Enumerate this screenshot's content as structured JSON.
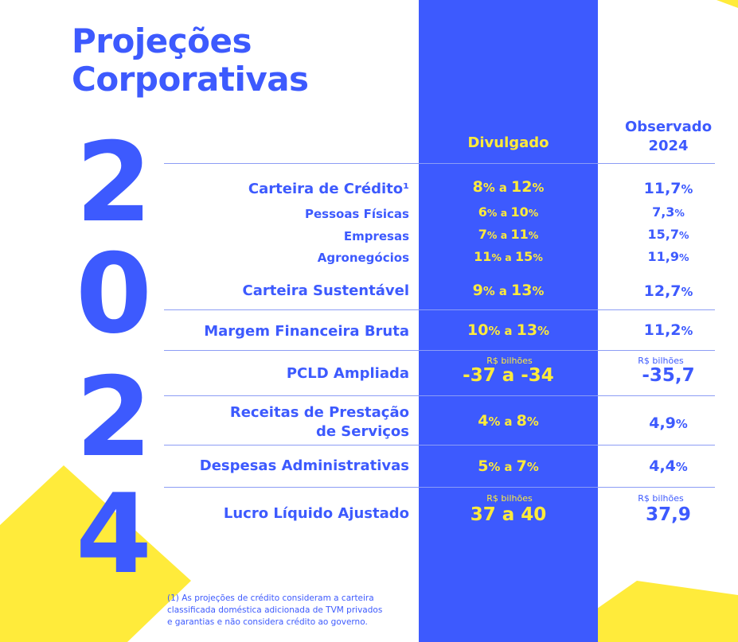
{
  "title": {
    "line1": "Projeções",
    "line2": "Corporativas"
  },
  "year_digits": [
    "2",
    "0",
    "2",
    "4"
  ],
  "columns": {
    "divulgado": "Divulgado",
    "observado_line1": "Observado",
    "observado_line2": "2024"
  },
  "colors": {
    "blue": "#3d5afe",
    "yellow": "#ffeb3b",
    "white": "#ffffff"
  },
  "rows": {
    "carteira_credito": {
      "label": "Carteira de Crédito¹",
      "div_a": "8",
      "div_sep": " a ",
      "div_b": "12",
      "div_pct": "%",
      "obs": "11,7",
      "obs_pct": "%"
    },
    "pessoas_fisicas": {
      "label": "Pessoas Físicas",
      "div_a": "6",
      "div_sep": " a ",
      "div_b": "10",
      "div_pct": "%",
      "obs": "7,3",
      "obs_pct": "%"
    },
    "empresas": {
      "label": "Empresas",
      "div_a": "7",
      "div_sep": " a ",
      "div_b": "11",
      "div_pct": "%",
      "obs": "15,7",
      "obs_pct": "%"
    },
    "agronegocios": {
      "label": "Agronegócios",
      "div_a": "11",
      "div_sep": " a ",
      "div_b": "15",
      "div_pct": "%",
      "obs": "11,9",
      "obs_pct": "%"
    },
    "carteira_sustentavel": {
      "label": "Carteira Sustentável",
      "div_a": "9",
      "div_sep": " a ",
      "div_b": "13",
      "div_pct": "%",
      "obs": "12,7",
      "obs_pct": "%"
    },
    "margem": {
      "label": "Margem Financeira Bruta",
      "div_a": "10",
      "div_sep": " a ",
      "div_b": "13",
      "div_pct": "%",
      "obs": "11,2",
      "obs_pct": "%"
    },
    "pcld": {
      "label": "PCLD Ampliada",
      "unit": "R$ bilhões",
      "div": "-37 a -34",
      "obs_unit": "R$ bilhões",
      "obs": "-35,7"
    },
    "receitas": {
      "label_line1": "Receitas de Prestação",
      "label_line2": "de Serviços",
      "div_a": "4",
      "div_sep": " a ",
      "div_b": "8",
      "div_pct": "%",
      "obs": "4,9",
      "obs_pct": "%"
    },
    "despesas": {
      "label": "Despesas Administrativas",
      "div_a": "5",
      "div_sep": " a ",
      "div_b": "7",
      "div_pct": "%",
      "obs": "4,4",
      "obs_pct": "%"
    },
    "lucro": {
      "label": "Lucro Líquido Ajustado",
      "unit": "R$ bilhões",
      "div": "37 a 40",
      "obs_unit": "R$ bilhões",
      "obs": "37,9"
    }
  },
  "footnote": {
    "line1": "(1) As projeções de crédito consideram a carteira",
    "line2": "classificada doméstica adicionada de TVM privados",
    "line3": "e garantias e não considera crédito ao governo."
  }
}
